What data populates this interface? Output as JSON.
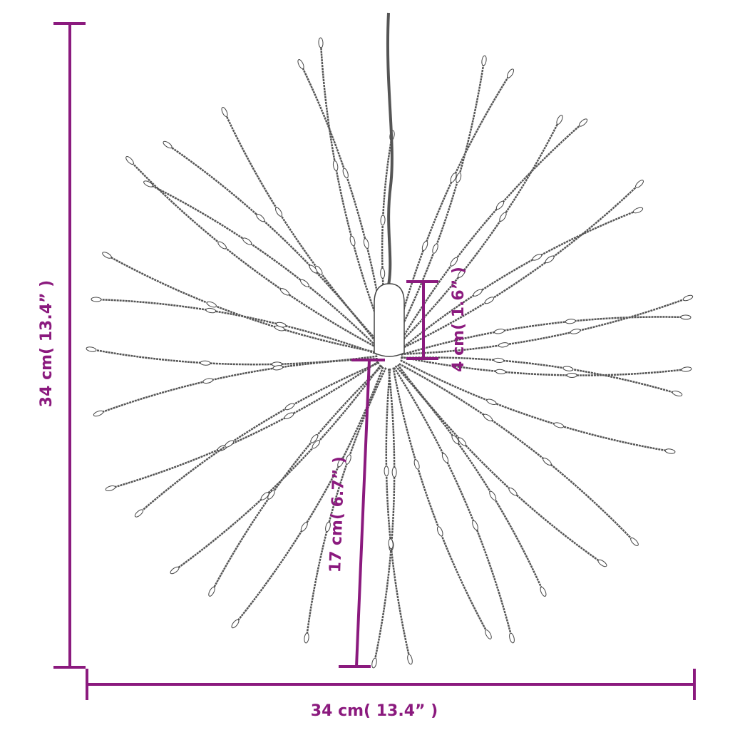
{
  "colors": {
    "dimension": "#8B1A7E",
    "wire": "#555555"
  },
  "dimensions": {
    "height_total": "34 cm( 13.4” )",
    "width_total": "34 cm( 13.4” )",
    "cap_height": "4 cm( 1.6” )",
    "strand_length": "17 cm( 6.7” )"
  }
}
